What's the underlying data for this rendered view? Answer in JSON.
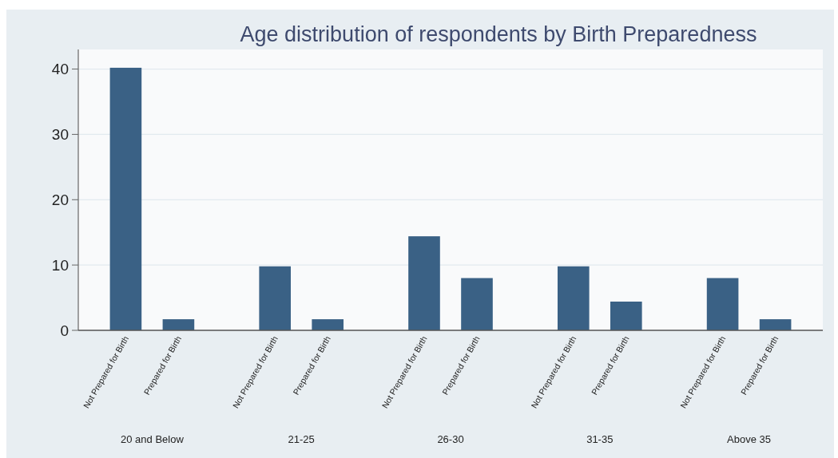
{
  "chart_data": {
    "type": "bar",
    "title": "Age distribution of respondents by Birth Preparedness",
    "categories": [
      "Not Prepared for Birth",
      "Prepared for Birth",
      "Not Prepared for Birth",
      "Prepared for Birth",
      "Not Prepared for Birth",
      "Prepared for Birth",
      "Not Prepared for Birth",
      "Prepared for Birth",
      "Not Prepared for Birth",
      "Prepared for Birth"
    ],
    "values": [
      40.2,
      1.7,
      9.8,
      1.7,
      14.4,
      8.0,
      9.8,
      4.4,
      8.0,
      1.7
    ],
    "color": "#3a6185",
    "ylim": [
      0,
      43
    ],
    "yticks": [
      0,
      10,
      20,
      30,
      40
    ],
    "grid": "y",
    "annotations": [
      "20 and Below",
      "21-25",
      "26-30",
      "31-35",
      "Above 35"
    ]
  }
}
